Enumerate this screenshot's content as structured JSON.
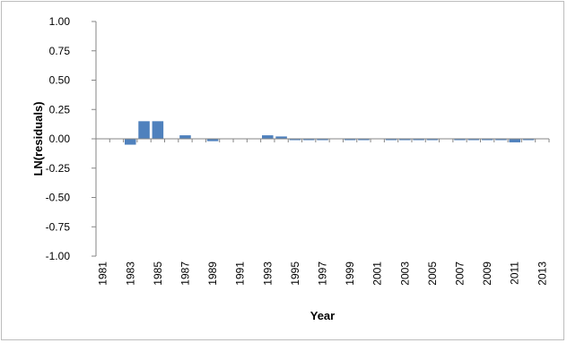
{
  "chart_data": {
    "type": "bar",
    "title": "",
    "xlabel": "Year",
    "ylabel": "LN(residuals)",
    "ylim": [
      -1.0,
      1.0
    ],
    "y_ticks": [
      "1.00",
      "0.75",
      "0.50",
      "0.25",
      "0.00",
      "-0.25",
      "-0.50",
      "-0.75",
      "-1.00"
    ],
    "y_tick_values": [
      1.0,
      0.75,
      0.5,
      0.25,
      0.0,
      -0.25,
      -0.5,
      -0.75,
      -1.0
    ],
    "categories": [
      "1981",
      "1982",
      "1983",
      "1984",
      "1985",
      "1986",
      "1987",
      "1988",
      "1989",
      "1990",
      "1991",
      "1992",
      "1993",
      "1994",
      "1995",
      "1996",
      "1997",
      "1998",
      "1999",
      "2000",
      "2001",
      "2002",
      "2003",
      "2004",
      "2005",
      "2006",
      "2007",
      "2008",
      "2009",
      "2010",
      "2011",
      "2012",
      "2013"
    ],
    "x_tick_labels": [
      "1981",
      "1983",
      "1985",
      "1987",
      "1989",
      "1991",
      "1993",
      "1995",
      "1997",
      "1999",
      "2001",
      "2003",
      "2005",
      "2007",
      "2009",
      "2011",
      "2013"
    ],
    "values": [
      0.0,
      0.0,
      -0.05,
      0.15,
      0.15,
      0.0,
      0.03,
      0.0,
      -0.02,
      0.0,
      0.0,
      0.0,
      0.03,
      0.02,
      -0.01,
      -0.01,
      -0.01,
      0.0,
      -0.01,
      -0.01,
      0.0,
      -0.01,
      -0.01,
      -0.01,
      -0.01,
      0.0,
      -0.01,
      -0.01,
      -0.01,
      -0.01,
      -0.03,
      -0.01,
      0.0
    ],
    "grid": false,
    "legend": "none",
    "bar_color": "#4f81bd"
  }
}
